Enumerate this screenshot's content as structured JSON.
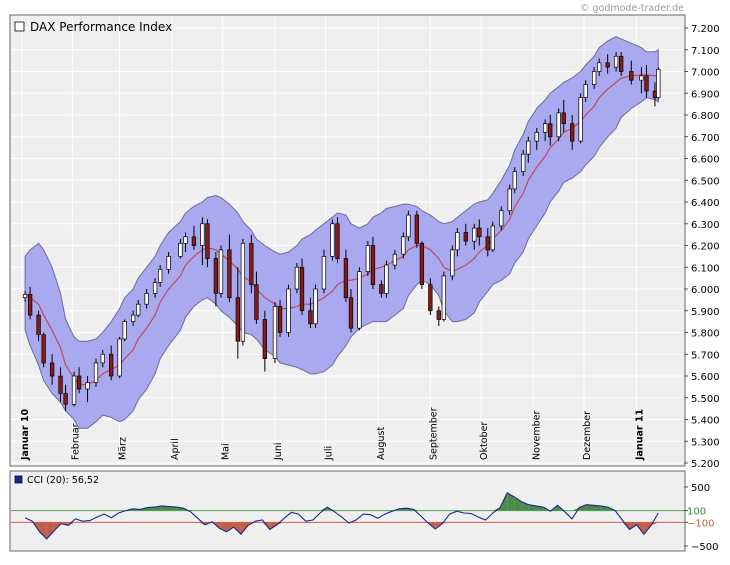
{
  "source_label": "© godmode-trader.de",
  "colors": {
    "band_fill": "#a9a9f0",
    "band_stroke": "#6b6b9a",
    "ma_line": "#c04a5a",
    "candle_up": "#ffffff",
    "candle_down": "#8a1a1a",
    "candle_outline": "#000000",
    "panel_bg": "#efefef",
    "grid": "#ffffff",
    "cci_line": "#1a2a8a",
    "cci_pos_fill": "#4a8a4a",
    "cci_neg_fill": "#c0604a",
    "cci_upper_line": "#50a050",
    "cci_lower_line": "#d06050",
    "cci_upper_label": "#3a8a3a",
    "cci_lower_label": "#c06040"
  },
  "chart_data": [
    {
      "type": "candlestick",
      "title": "DAX Performance Index",
      "legend_icon": "hollow-square-icon",
      "x_tick_labels": [
        "Januar 10",
        "Februar",
        "März",
        "April",
        "Mai",
        "Juni",
        "Juli",
        "August",
        "September",
        "Oktober",
        "November",
        "Dezember",
        "Januar 11"
      ],
      "bold_tick_labels": [
        "Januar 10",
        "Januar 11"
      ],
      "y_tick_labels": [
        "7.200",
        "7.100",
        "7.000",
        "6.900",
        "6.800",
        "6.700",
        "6.600",
        "6.500",
        "6.400",
        "6.300",
        "6.200",
        "6.100",
        "6.000",
        "5.900",
        "5.800",
        "5.700",
        "5.600",
        "5.500",
        "5.400",
        "5.300",
        "5.200"
      ],
      "ylim": [
        5200,
        7200
      ],
      "y_ticks": [
        7200,
        7100,
        7000,
        6900,
        6800,
        6700,
        6600,
        6500,
        6400,
        6300,
        6200,
        6100,
        6000,
        5900,
        5800,
        5700,
        5600,
        5500,
        5400,
        5300,
        5200
      ],
      "grid": true,
      "x": [
        "2010-01-04",
        "2010-01-07",
        "2010-01-12",
        "2010-01-15",
        "2010-01-20",
        "2010-01-25",
        "2010-01-28",
        "2010-02-02",
        "2010-02-05",
        "2010-02-10",
        "2010-02-15",
        "2010-02-19",
        "2010-02-24",
        "2010-03-01",
        "2010-03-04",
        "2010-03-09",
        "2010-03-12",
        "2010-03-17",
        "2010-03-22",
        "2010-03-25",
        "2010-03-30",
        "2010-04-06",
        "2010-04-09",
        "2010-04-14",
        "2010-04-19",
        "2010-04-22",
        "2010-04-27",
        "2010-04-30",
        "2010-05-05",
        "2010-05-10",
        "2010-05-13",
        "2010-05-18",
        "2010-05-21",
        "2010-05-26",
        "2010-06-01",
        "2010-06-04",
        "2010-06-09",
        "2010-06-14",
        "2010-06-17",
        "2010-06-22",
        "2010-06-25",
        "2010-06-30",
        "2010-07-05",
        "2010-07-08",
        "2010-07-13",
        "2010-07-16",
        "2010-07-21",
        "2010-07-26",
        "2010-07-29",
        "2010-08-03",
        "2010-08-06",
        "2010-08-11",
        "2010-08-16",
        "2010-08-19",
        "2010-08-24",
        "2010-08-27",
        "2010-09-01",
        "2010-09-06",
        "2010-09-09",
        "2010-09-14",
        "2010-09-17",
        "2010-09-22",
        "2010-09-27",
        "2010-09-30",
        "2010-10-05",
        "2010-10-08",
        "2010-10-13",
        "2010-10-18",
        "2010-10-21",
        "2010-10-26",
        "2010-10-29",
        "2010-11-03",
        "2010-11-08",
        "2010-11-11",
        "2010-11-16",
        "2010-11-19",
        "2010-11-24",
        "2010-11-29",
        "2010-12-02",
        "2010-12-07",
        "2010-12-10",
        "2010-12-15",
        "2010-12-20",
        "2010-12-23",
        "2010-12-29",
        "2011-01-04",
        "2011-01-07",
        "2011-01-12",
        "2011-01-14"
      ],
      "candles": [
        [
          5960,
          5990,
          5940,
          5975
        ],
        [
          5975,
          6010,
          5860,
          5880
        ],
        [
          5880,
          5900,
          5760,
          5790
        ],
        [
          5790,
          5800,
          5640,
          5660
        ],
        [
          5660,
          5700,
          5560,
          5600
        ],
        [
          5600,
          5640,
          5480,
          5520
        ],
        [
          5520,
          5560,
          5440,
          5470
        ],
        [
          5470,
          5620,
          5460,
          5600
        ],
        [
          5600,
          5640,
          5520,
          5540
        ],
        [
          5540,
          5600,
          5480,
          5570
        ],
        [
          5570,
          5680,
          5550,
          5660
        ],
        [
          5660,
          5720,
          5640,
          5700
        ],
        [
          5700,
          5740,
          5580,
          5600
        ],
        [
          5600,
          5780,
          5590,
          5770
        ],
        [
          5770,
          5860,
          5760,
          5850
        ],
        [
          5850,
          5900,
          5830,
          5880
        ],
        [
          5880,
          5950,
          5870,
          5930
        ],
        [
          5930,
          6000,
          5910,
          5980
        ],
        [
          5980,
          6050,
          5960,
          6030
        ],
        [
          6030,
          6110,
          6010,
          6090
        ],
        [
          6090,
          6170,
          6070,
          6150
        ],
        [
          6150,
          6230,
          6140,
          6210
        ],
        [
          6210,
          6260,
          6170,
          6240
        ],
        [
          6240,
          6290,
          6180,
          6200
        ],
        [
          6200,
          6330,
          6110,
          6300
        ],
        [
          6300,
          6320,
          6100,
          6140
        ],
        [
          6140,
          6170,
          5920,
          5980
        ],
        [
          5980,
          6200,
          5960,
          6180
        ],
        [
          6180,
          6250,
          5940,
          5960
        ],
        [
          5960,
          6100,
          5680,
          5760
        ],
        [
          5760,
          6230,
          5740,
          6210
        ],
        [
          6210,
          6250,
          5980,
          6020
        ],
        [
          6020,
          6080,
          5840,
          5860
        ],
        [
          5860,
          5900,
          5620,
          5680
        ],
        [
          5680,
          5940,
          5660,
          5920
        ],
        [
          5920,
          5950,
          5780,
          5800
        ],
        [
          5800,
          6020,
          5780,
          6000
        ],
        [
          6000,
          6120,
          5980,
          6100
        ],
        [
          6100,
          6140,
          5880,
          5900
        ],
        [
          5900,
          5960,
          5820,
          5840
        ],
        [
          5840,
          6020,
          5820,
          6000
        ],
        [
          6000,
          6180,
          5980,
          6150
        ],
        [
          6150,
          6320,
          6130,
          6300
        ],
        [
          6300,
          6330,
          6120,
          6140
        ],
        [
          6140,
          6180,
          5940,
          5960
        ],
        [
          5960,
          6000,
          5800,
          5820
        ],
        [
          5820,
          6100,
          5810,
          6080
        ],
        [
          6080,
          6220,
          6060,
          6200
        ],
        [
          6200,
          6240,
          6000,
          6020
        ],
        [
          6020,
          6040,
          5960,
          5980
        ],
        [
          5980,
          6130,
          5960,
          6110
        ],
        [
          6110,
          6180,
          6090,
          6160
        ],
        [
          6160,
          6260,
          6140,
          6240
        ],
        [
          6240,
          6360,
          6220,
          6340
        ],
        [
          6340,
          6360,
          6190,
          6210
        ],
        [
          6210,
          6220,
          6000,
          6020
        ],
        [
          6020,
          6050,
          5880,
          5900
        ],
        [
          5900,
          5920,
          5830,
          5860
        ],
        [
          5860,
          6080,
          5850,
          6060
        ],
        [
          6060,
          6200,
          6040,
          6180
        ],
        [
          6180,
          6280,
          6150,
          6260
        ],
        [
          6260,
          6300,
          6200,
          6220
        ],
        [
          6220,
          6300,
          6180,
          6280
        ],
        [
          6280,
          6320,
          6200,
          6240
        ],
        [
          6240,
          6280,
          6150,
          6180
        ],
        [
          6180,
          6310,
          6170,
          6290
        ],
        [
          6290,
          6380,
          6270,
          6360
        ],
        [
          6360,
          6480,
          6340,
          6460
        ],
        [
          6460,
          6560,
          6440,
          6540
        ],
        [
          6540,
          6640,
          6520,
          6620
        ],
        [
          6620,
          6700,
          6580,
          6680
        ],
        [
          6680,
          6740,
          6640,
          6720
        ],
        [
          6720,
          6780,
          6680,
          6760
        ],
        [
          6760,
          6800,
          6660,
          6700
        ],
        [
          6700,
          6830,
          6680,
          6810
        ],
        [
          6810,
          6870,
          6720,
          6760
        ],
        [
          6760,
          6800,
          6640,
          6680
        ],
        [
          6680,
          6900,
          6670,
          6880
        ],
        [
          6880,
          6960,
          6860,
          6940
        ],
        [
          6940,
          7020,
          6920,
          7000
        ],
        [
          7000,
          7060,
          6980,
          7040
        ],
        [
          7040,
          7080,
          6990,
          7020
        ],
        [
          7020,
          7090,
          7000,
          7070
        ],
        [
          7070,
          7090,
          6980,
          7000
        ],
        [
          7000,
          7050,
          6940,
          6960
        ],
        [
          6960,
          7020,
          6900,
          6980
        ],
        [
          6980,
          7030,
          6880,
          6910
        ],
        [
          6910,
          6950,
          6840,
          6880
        ],
        [
          6880,
          7020,
          6870,
          7010
        ]
      ],
      "moving_average": [
        5980,
        5960,
        5930,
        5880,
        5810,
        5730,
        5650,
        5590,
        5560,
        5560,
        5580,
        5610,
        5630,
        5650,
        5680,
        5720,
        5770,
        5820,
        5880,
        5940,
        6000,
        6060,
        6110,
        6150,
        6180,
        6190,
        6180,
        6160,
        6130,
        6090,
        6060,
        6030,
        6000,
        5960,
        5930,
        5910,
        5910,
        5920,
        5930,
        5930,
        5940,
        5960,
        5990,
        6020,
        6040,
        6040,
        6050,
        6070,
        6090,
        6100,
        6110,
        6130,
        6150,
        6180,
        6200,
        6200,
        6180,
        6140,
        6100,
        6080,
        6090,
        6110,
        6140,
        6170,
        6200,
        6230,
        6270,
        6320,
        6380,
        6440,
        6500,
        6560,
        6610,
        6650,
        6690,
        6720,
        6740,
        6770,
        6800,
        6840,
        6880,
        6920,
        6950,
        6970,
        6980,
        6985,
        6985,
        6980,
        6980
      ],
      "band_upper": [
        6150,
        6180,
        6210,
        6180,
        6100,
        5980,
        5860,
        5780,
        5760,
        5760,
        5770,
        5800,
        5850,
        5910,
        5960,
        6000,
        6050,
        6100,
        6150,
        6200,
        6260,
        6310,
        6350,
        6380,
        6400,
        6420,
        6430,
        6420,
        6390,
        6350,
        6310,
        6270,
        6230,
        6200,
        6170,
        6160,
        6170,
        6200,
        6230,
        6250,
        6270,
        6300,
        6330,
        6350,
        6340,
        6300,
        6280,
        6300,
        6330,
        6350,
        6370,
        6380,
        6390,
        6390,
        6380,
        6360,
        6340,
        6310,
        6300,
        6310,
        6330,
        6360,
        6390,
        6400,
        6410,
        6440,
        6500,
        6570,
        6640,
        6710,
        6770,
        6830,
        6870,
        6900,
        6930,
        6950,
        6970,
        7000,
        7030,
        7070,
        7110,
        7140,
        7160,
        7150,
        7130,
        7110,
        7090,
        7090,
        7100
      ],
      "band_lower": [
        5810,
        5740,
        5650,
        5580,
        5520,
        5480,
        5440,
        5400,
        5360,
        5360,
        5390,
        5420,
        5410,
        5390,
        5400,
        5440,
        5490,
        5540,
        5610,
        5680,
        5740,
        5810,
        5870,
        5920,
        5950,
        5960,
        5930,
        5900,
        5870,
        5830,
        5800,
        5790,
        5770,
        5720,
        5690,
        5660,
        5650,
        5640,
        5630,
        5610,
        5610,
        5620,
        5650,
        5690,
        5740,
        5780,
        5820,
        5840,
        5850,
        5850,
        5850,
        5880,
        5910,
        5970,
        6020,
        6040,
        6020,
        5970,
        5900,
        5850,
        5850,
        5860,
        5890,
        5940,
        5990,
        6020,
        6040,
        6070,
        6120,
        6170,
        6230,
        6290,
        6350,
        6400,
        6450,
        6490,
        6510,
        6540,
        6570,
        6610,
        6650,
        6700,
        6740,
        6790,
        6830,
        6860,
        6880,
        6870,
        6860
      ]
    },
    {
      "type": "line",
      "legend_icon": "filled-square-icon",
      "legend_label": "CCI (20): 56,52",
      "y_tick_labels": [
        "500",
        "100",
        "−100",
        "−500"
      ],
      "ylim": [
        -700,
        700
      ],
      "upper_level": 100,
      "lower_level": -100,
      "x_range": [
        "2010-01-04",
        "2011-01-14"
      ],
      "values": [
        -20,
        -80,
        -260,
        -380,
        -250,
        -120,
        -150,
        -40,
        -80,
        -70,
        -10,
        40,
        -20,
        60,
        100,
        130,
        120,
        150,
        160,
        180,
        170,
        160,
        140,
        80,
        -30,
        -140,
        -90,
        -200,
        -260,
        -180,
        -300,
        -150,
        -80,
        -60,
        -220,
        -140,
        -30,
        70,
        40,
        -80,
        -60,
        60,
        160,
        80,
        -10,
        -110,
        -60,
        40,
        30,
        -30,
        40,
        90,
        130,
        140,
        120,
        10,
        -110,
        -210,
        -120,
        40,
        90,
        60,
        50,
        -10,
        -60,
        60,
        150,
        400,
        330,
        250,
        200,
        180,
        160,
        90,
        190,
        80,
        -40,
        150,
        200,
        190,
        180,
        160,
        100,
        -60,
        -220,
        -140,
        -300,
        -150,
        60
      ]
    }
  ]
}
